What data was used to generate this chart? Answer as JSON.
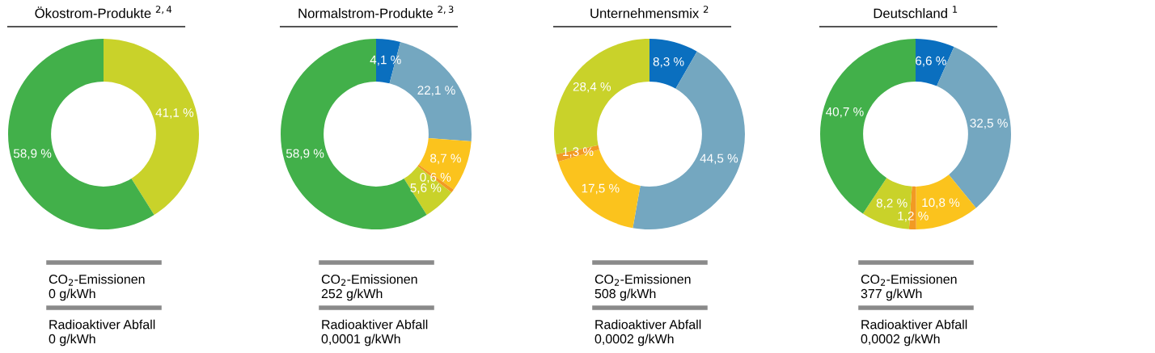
{
  "chart_data": [
    {
      "type": "donut",
      "title": "Ökostrom-Produkte $^{2,4}$",
      "categories": [
        null,
        null
      ],
      "values": [
        41.1,
        58.9
      ],
      "colors": [
        "#c9d22a",
        "#42b04a"
      ],
      "value_labels": [
        "41,1 %",
        "58,9 %"
      ],
      "annotations": [
        "CO$_{2}$-Emissionen\n0 g/kWh",
        "Radioaktiver Abfall\n0 g/kWh"
      ]
    },
    {
      "type": "donut",
      "title": "Normalstrom-Produkte $^{2,3}$",
      "categories": [
        null,
        null,
        null,
        null,
        null,
        null
      ],
      "values": [
        4.1,
        22.1,
        8.7,
        0.6,
        5.6,
        58.9
      ],
      "colors": [
        "#0a6fbf",
        "#74a7c0",
        "#fbc31d",
        "#f29a23",
        "#c9d22a",
        "#42b04a"
      ],
      "value_labels": [
        "4,1 %",
        "22,1 %",
        "8,7 %",
        "0,6 %",
        "5,6 %",
        "58,9 %"
      ],
      "annotations": [
        "CO$_{2}$-Emissionen\n252 g/kWh",
        "Radioaktiver Abfall\n0,0001 g/kWh"
      ]
    },
    {
      "type": "donut",
      "title": "Unternehmensmix $^{2}$",
      "categories": [
        null,
        null,
        null,
        null,
        null
      ],
      "values": [
        8.3,
        44.5,
        17.5,
        1.3,
        28.4
      ],
      "colors": [
        "#0a6fbf",
        "#74a7c0",
        "#fbc31d",
        "#f29a23",
        "#c9d22a"
      ],
      "value_labels": [
        "8,3 %",
        "44,5 %",
        "17,5 %",
        "1,3 %",
        "28,4 %"
      ],
      "annotations": [
        "CO$_{2}$-Emissionen\n508 g/kWh",
        "Radioaktiver Abfall\n0,0002 g/kWh"
      ]
    },
    {
      "type": "donut",
      "title": "Deutschland $^{1}$",
      "categories": [
        null,
        null,
        null,
        null,
        null,
        null
      ],
      "values": [
        6.6,
        32.5,
        10.8,
        1.2,
        8.2,
        40.7
      ],
      "colors": [
        "#0a6fbf",
        "#74a7c0",
        "#fbc31d",
        "#f29a23",
        "#c9d22a",
        "#42b04a"
      ],
      "value_labels": [
        "6,6 %",
        "32,5 %",
        "10,8 %",
        "1,2 %",
        "8,2 %",
        "40,7 %"
      ],
      "annotations": [
        "CO$_{2}$-Emissionen\n377 g/kWh",
        "Radioaktiver Abfall\n0,0002 g/kWh"
      ]
    }
  ]
}
